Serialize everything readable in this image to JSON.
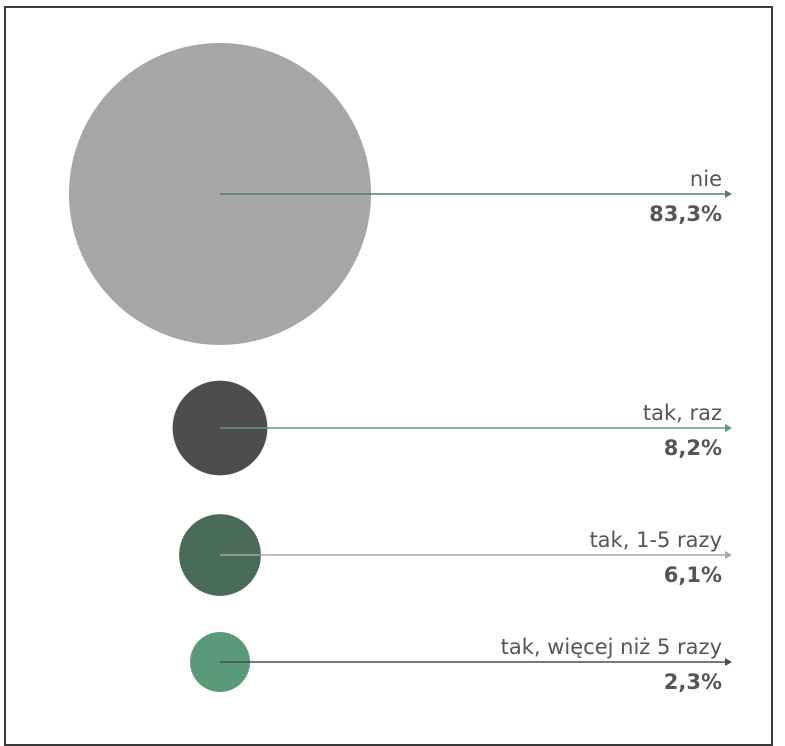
{
  "chart_data": {
    "type": "bubble",
    "title": "",
    "categories": [
      "nie",
      "tak, raz",
      "tak, 1-5 razy",
      "tak, więcej niż 5 razy"
    ],
    "values": [
      83.3,
      8.2,
      6.1,
      2.3
    ],
    "value_labels": [
      "83,3%",
      "8,2%",
      "6,1%",
      "2,3%"
    ],
    "bubble_colors": [
      "#a6a6a6",
      "#4d4d4d",
      "#4a6a5a",
      "#5a9a78"
    ],
    "leader_colors": [
      "#5a7a6a",
      "#5a9a78",
      "#a6a6a6",
      "#4d4d4d"
    ],
    "legend": "none",
    "grid": false
  }
}
